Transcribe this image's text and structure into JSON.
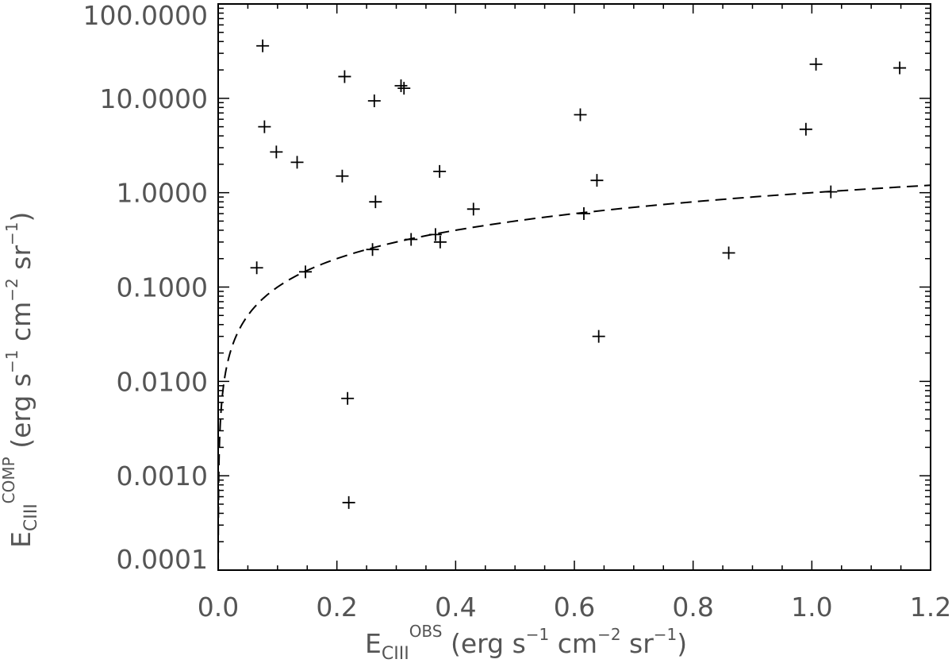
{
  "chart_data": {
    "type": "scatter",
    "title": "",
    "x_axis": {
      "label_base": "E",
      "label_sub": "CIII",
      "label_sup": "OBS",
      "label_units": " (erg s",
      "label_units_parts": [
        {
          "text": " (erg s",
          "sup": "−1"
        },
        {
          "text": " cm",
          "sup": "−2"
        },
        {
          "text": " sr",
          "sup": "−1"
        },
        {
          "text": ")",
          "sup": ""
        }
      ],
      "range": [
        0.0,
        1.2
      ],
      "scale": "linear",
      "tick_labels": [
        "0.0",
        "0.2",
        "0.4",
        "0.6",
        "0.8",
        "1.0",
        "1.2"
      ],
      "tick_values": [
        0.0,
        0.2,
        0.4,
        0.6,
        0.8,
        1.0,
        1.2
      ]
    },
    "y_axis": {
      "label_base": "E",
      "label_sub": "CIII",
      "label_sup": "COMP",
      "label_units_parts": [
        {
          "text": " (erg s",
          "sup": "−1"
        },
        {
          "text": " cm",
          "sup": "−2"
        },
        {
          "text": " sr",
          "sup": "−1"
        },
        {
          "text": ")",
          "sup": ""
        }
      ],
      "range": [
        0.0001,
        100
      ],
      "scale": "log",
      "tick_labels": [
        "0.0001",
        "0.0010",
        "0.0100",
        "0.1000",
        "1.0000",
        "10.0000",
        "100.0000"
      ],
      "tick_values": [
        0.0001,
        0.001,
        0.01,
        0.1,
        1,
        10,
        100
      ]
    },
    "grid": false,
    "legend": "none",
    "marker": "plus",
    "points": [
      {
        "x": 0.075,
        "y": 36
      },
      {
        "x": 0.078,
        "y": 5.0
      },
      {
        "x": 0.098,
        "y": 2.7
      },
      {
        "x": 0.133,
        "y": 2.1
      },
      {
        "x": 0.065,
        "y": 0.16
      },
      {
        "x": 0.147,
        "y": 0.145
      },
      {
        "x": 0.213,
        "y": 17
      },
      {
        "x": 0.209,
        "y": 1.5
      },
      {
        "x": 0.218,
        "y": 0.0066
      },
      {
        "x": 0.22,
        "y": 0.00052
      },
      {
        "x": 0.263,
        "y": 9.4
      },
      {
        "x": 0.265,
        "y": 0.8
      },
      {
        "x": 0.26,
        "y": 0.25
      },
      {
        "x": 0.308,
        "y": 13.6
      },
      {
        "x": 0.313,
        "y": 12.8
      },
      {
        "x": 0.325,
        "y": 0.32
      },
      {
        "x": 0.373,
        "y": 1.68
      },
      {
        "x": 0.366,
        "y": 0.36
      },
      {
        "x": 0.374,
        "y": 0.3
      },
      {
        "x": 0.43,
        "y": 0.67
      },
      {
        "x": 0.61,
        "y": 6.7
      },
      {
        "x": 0.616,
        "y": 0.6
      },
      {
        "x": 0.638,
        "y": 1.35
      },
      {
        "x": 0.641,
        "y": 0.03
      },
      {
        "x": 0.86,
        "y": 0.23
      },
      {
        "x": 0.99,
        "y": 4.7
      },
      {
        "x": 1.007,
        "y": 23
      },
      {
        "x": 1.032,
        "y": 1.02
      },
      {
        "x": 1.148,
        "y": 21
      }
    ],
    "reference_line": {
      "style": "dashed",
      "relation": "y = x",
      "x_range": [
        0.0001,
        1.2
      ]
    }
  }
}
